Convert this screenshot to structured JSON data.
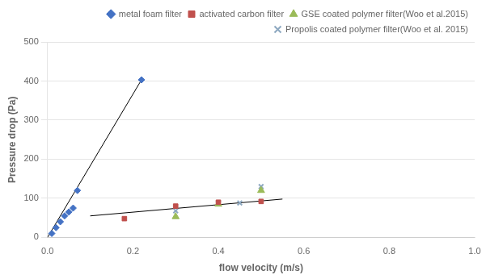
{
  "chart_data": {
    "type": "scatter",
    "xlabel": "flow velocity (m/s)",
    "ylabel": "Pressure drop (Pa)",
    "xlim": [
      0,
      1
    ],
    "ylim": [
      0,
      500
    ],
    "xticks": [
      {
        "value": 0,
        "label": "0.0"
      },
      0.2,
      0.4,
      0.6,
      0.8,
      {
        "value": 1,
        "label": "1.0"
      }
    ],
    "yticks": [
      0,
      100,
      200,
      300,
      400,
      500
    ],
    "grid": "y",
    "legend": "top-right",
    "series": [
      {
        "type": "line",
        "color": "#000000",
        "line_style": "solid",
        "x": [
          0.0,
          0.22
        ],
        "values": [
          0,
          403
        ]
      },
      {
        "name": "metal foam filter",
        "type": "scatter",
        "color": "#4472C4",
        "marker": "diamond",
        "x": [
          0.01,
          0.02,
          0.03,
          0.04,
          0.05,
          0.06,
          0.07,
          0.22
        ],
        "values": [
          10,
          25,
          40,
          55,
          65,
          75,
          120,
          403
        ]
      },
      {
        "type": "line",
        "color": "#000000",
        "line_style": "solid",
        "x": [
          0.1,
          0.55
        ],
        "values": [
          55,
          98
        ]
      },
      {
        "name": "activated carbon filter",
        "type": "scatter",
        "color": "#C0504D",
        "marker": "square",
        "x": [
          0.18,
          0.3,
          0.4,
          0.5
        ],
        "values": [
          48,
          80,
          90,
          92
        ]
      },
      {
        "name": "GSE coated polymer filter(Woo et al.2015)",
        "type": "scatter",
        "color": "#9BBB59",
        "marker": "triangle",
        "x": [
          0.3,
          0.4,
          0.5
        ],
        "values": [
          53,
          85,
          120
        ]
      },
      {
        "name": "Propolis coated polymer filter(Woo et al. 2015)",
        "type": "scatter",
        "color": "#8EA9C1",
        "marker": "x",
        "x": [
          0.3,
          0.4,
          0.45,
          0.5
        ],
        "values": [
          68,
          88,
          88,
          130
        ]
      }
    ]
  }
}
